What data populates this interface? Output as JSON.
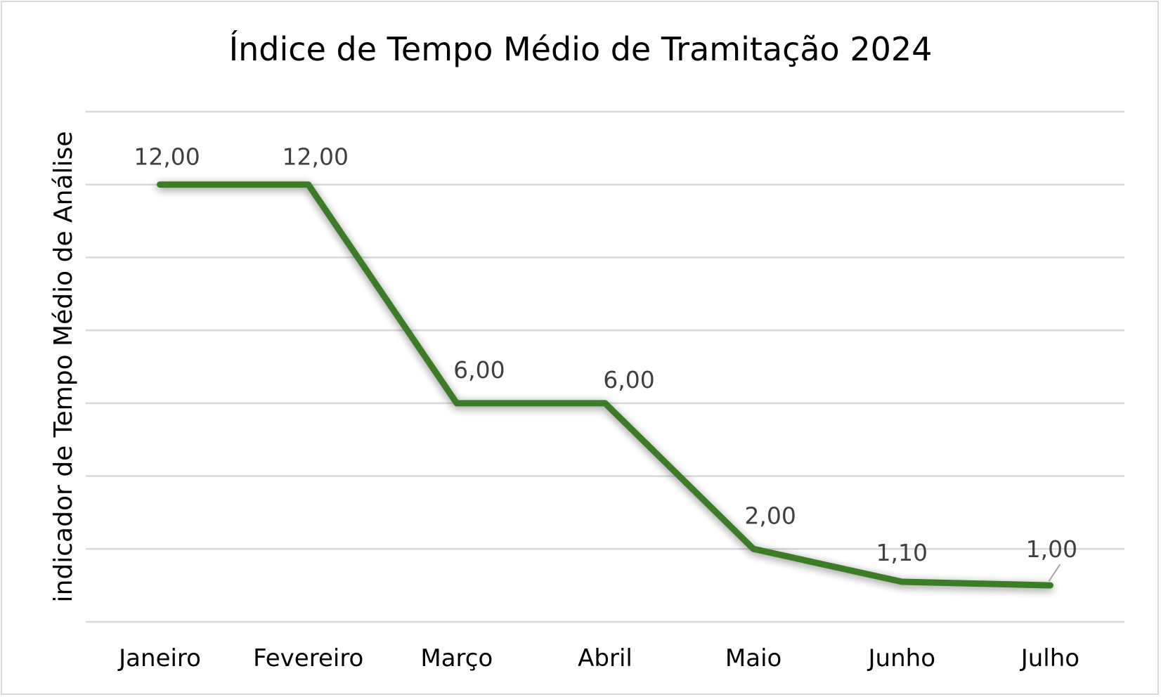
{
  "chart_data": {
    "type": "line",
    "title": "Índice de Tempo Médio de Tramitação 2024",
    "xlabel": "",
    "ylabel": "indicador de Tempo Médio de Análise",
    "categories": [
      "Janeiro",
      "Fevereiro",
      "Março",
      "Abril",
      "Maio",
      "Junho",
      "Julho"
    ],
    "series": [
      {
        "values": [
          12,
          12,
          6,
          6,
          2,
          1.1,
          1
        ],
        "labels": [
          "12,00",
          "12,00",
          "6,00",
          "6,00",
          "2,00",
          "1,10",
          "1,00"
        ],
        "color": "#3e7b27"
      }
    ],
    "ylim": [
      0,
      14
    ],
    "ytick_step": 2,
    "grid": true,
    "legend": "none",
    "ytick_labels_visible": false
  }
}
